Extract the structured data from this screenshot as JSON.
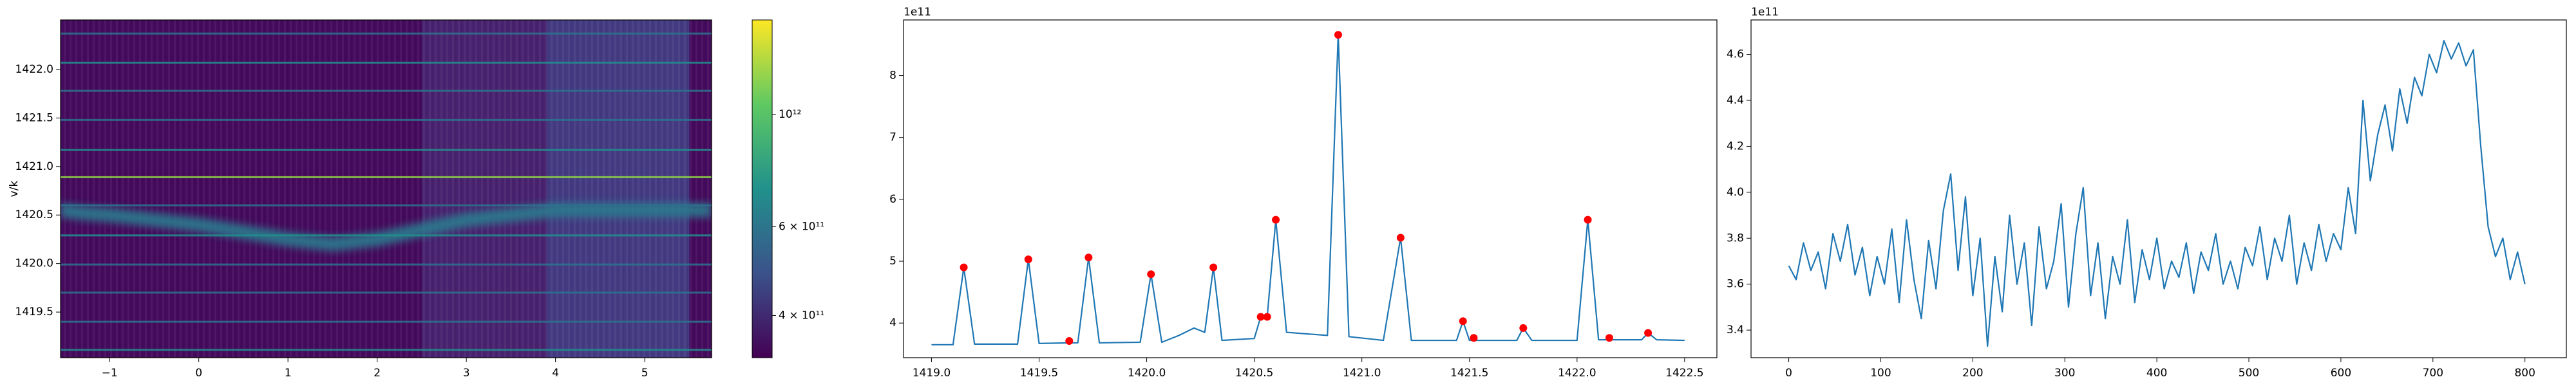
{
  "chart_data": [
    {
      "type": "heatmap",
      "y_label": "v/k",
      "xlim": [
        -1.55,
        5.75
      ],
      "ylim": [
        1419.03,
        1422.51
      ],
      "xticks": [
        {
          "value": -1,
          "label": "−1"
        },
        0,
        1,
        2,
        3,
        4,
        5
      ],
      "yticks": [
        {
          "value": 1419.5,
          "label": "1419.5"
        },
        {
          "value": 1420.0,
          "label": "1420.0"
        },
        {
          "value": 1420.5,
          "label": "1420.5"
        },
        {
          "value": 1421.0,
          "label": "1421.0"
        },
        {
          "value": 1421.5,
          "label": "1421.5"
        },
        {
          "value": 1422.0,
          "label": "1422.0"
        }
      ],
      "background": "#440a5c",
      "regions": [
        {
          "x": [
            2.5,
            3.9
          ],
          "color": "#48226f"
        },
        {
          "x": [
            3.9,
            5.5
          ],
          "color": "#433a82"
        }
      ],
      "lines": [
        1422.37,
        1422.07,
        1421.78,
        1421.48,
        1421.17,
        1420.89,
        1420.6,
        1420.29,
        1419.99,
        1419.7,
        1419.4,
        1419.11
      ],
      "line_colors": [
        "#2c738e",
        "#21908d",
        "#2c738e",
        "#2c738e",
        "#21908d",
        "#8fd744",
        "#2c738e",
        "#21908d",
        "#2c738e",
        "#2c738e",
        "#2c738e",
        "#21908d"
      ],
      "band": {
        "x": [
          -1.55,
          -1.3,
          -1,
          0,
          1,
          1.5,
          2,
          3,
          4,
          5,
          5.75
        ],
        "y": [
          1420.55,
          1420.52,
          1420.5,
          1420.4,
          1420.25,
          1420.2,
          1420.25,
          1420.45,
          1420.55,
          1420.55,
          1420.55
        ],
        "color": "#2a7b8e"
      },
      "colorbar": {
        "lim": [
          330000000000,
          1540000000000
        ],
        "log": true,
        "ticks": [
          {
            "value": 1000000000000,
            "label": "10¹²"
          },
          {
            "value": 600000000000,
            "label": "6 × 10¹¹"
          },
          {
            "value": 400000000000,
            "label": "4 × 10¹¹"
          }
        ]
      }
    },
    {
      "type": "line",
      "offset_text": "1e11",
      "xlim": [
        1418.87,
        1422.65
      ],
      "ylim": [
        3.44,
        8.9
      ],
      "xticks": [
        {
          "value": 1419.0,
          "label": "1419.0"
        },
        1419.5,
        {
          "value": 1420.0,
          "label": "1420.0"
        },
        1420.5,
        {
          "value": 1421.0,
          "label": "1421.0"
        },
        1421.5,
        {
          "value": 1422.0,
          "label": "1422.0"
        },
        1422.5
      ],
      "yticks": [
        4,
        5,
        6,
        7,
        8
      ],
      "x": [
        1419.0,
        1419.1,
        1419.15,
        1419.2,
        1419.4,
        1419.45,
        1419.5,
        1419.64,
        1419.68,
        1419.73,
        1419.78,
        1419.97,
        1420.02,
        1420.07,
        1420.15,
        1420.22,
        1420.27,
        1420.31,
        1420.35,
        1420.5,
        1420.53,
        1420.56,
        1420.6,
        1420.65,
        1420.84,
        1420.89,
        1420.94,
        1421.1,
        1421.18,
        1421.23,
        1421.44,
        1421.47,
        1421.5,
        1421.72,
        1421.75,
        1421.79,
        1422.0,
        1422.05,
        1422.1,
        1422.3,
        1422.33,
        1422.37,
        1422.5
      ],
      "series": [
        {
          "color": "#1f77b4",
          "values": [
            3.65,
            3.65,
            4.9,
            3.66,
            3.66,
            5.03,
            3.67,
            3.68,
            3.68,
            5.06,
            3.68,
            3.69,
            4.79,
            3.69,
            3.8,
            3.92,
            3.85,
            4.9,
            3.72,
            3.75,
            4.1,
            4.1,
            5.67,
            3.85,
            3.8,
            8.66,
            3.78,
            3.72,
            5.38,
            3.72,
            3.72,
            4.03,
            3.72,
            3.72,
            3.92,
            3.72,
            3.72,
            5.67,
            3.73,
            3.73,
            3.84,
            3.73,
            3.72
          ]
        }
      ],
      "markers": {
        "color": "#ff0000",
        "x": [
          1419.15,
          1419.45,
          1419.64,
          1419.73,
          1420.02,
          1420.31,
          1420.53,
          1420.56,
          1420.6,
          1420.89,
          1421.18,
          1421.47,
          1421.52,
          1421.75,
          1422.05,
          1422.15,
          1422.33
        ],
        "y": [
          4.9,
          5.03,
          3.71,
          5.06,
          4.79,
          4.9,
          4.1,
          4.1,
          5.67,
          8.66,
          5.38,
          4.03,
          3.76,
          3.92,
          5.67,
          3.76,
          3.84
        ]
      }
    },
    {
      "type": "line",
      "offset_text": "1e11",
      "xlim": [
        -41,
        845
      ],
      "ylim": [
        3.28,
        4.75
      ],
      "xticks": [
        0,
        100,
        200,
        300,
        400,
        500,
        600,
        700,
        800
      ],
      "yticks": [
        3.4,
        3.6,
        {
          "value": 3.8,
          "label": "3.8"
        },
        {
          "value": 4.0,
          "label": "4.0"
        },
        4.2,
        4.4,
        4.6
      ],
      "x": [
        0,
        8,
        16,
        24,
        32,
        40,
        48,
        56,
        64,
        72,
        80,
        88,
        96,
        104,
        112,
        120,
        128,
        136,
        144,
        152,
        160,
        168,
        176,
        184,
        192,
        200,
        208,
        216,
        224,
        232,
        240,
        248,
        256,
        264,
        272,
        280,
        288,
        296,
        304,
        312,
        320,
        328,
        336,
        344,
        352,
        360,
        368,
        376,
        384,
        392,
        400,
        408,
        416,
        424,
        432,
        440,
        448,
        456,
        464,
        472,
        480,
        488,
        496,
        504,
        512,
        520,
        528,
        536,
        544,
        552,
        560,
        568,
        576,
        584,
        592,
        600,
        608,
        616,
        624,
        632,
        640,
        648,
        656,
        664,
        672,
        680,
        688,
        696,
        704,
        712,
        720,
        728,
        736,
        744,
        752,
        760,
        768,
        776,
        784,
        792,
        800
      ],
      "series": [
        {
          "color": "#1f77b4",
          "values": [
            3.68,
            3.62,
            3.78,
            3.66,
            3.74,
            3.58,
            3.82,
            3.7,
            3.86,
            3.64,
            3.76,
            3.55,
            3.72,
            3.6,
            3.84,
            3.52,
            3.88,
            3.62,
            3.45,
            3.79,
            3.58,
            3.92,
            4.08,
            3.66,
            3.98,
            3.55,
            3.8,
            3.33,
            3.72,
            3.48,
            3.9,
            3.6,
            3.78,
            3.42,
            3.85,
            3.58,
            3.7,
            3.95,
            3.5,
            3.82,
            4.02,
            3.55,
            3.78,
            3.45,
            3.72,
            3.6,
            3.88,
            3.52,
            3.75,
            3.62,
            3.8,
            3.58,
            3.7,
            3.63,
            3.78,
            3.56,
            3.74,
            3.66,
            3.82,
            3.6,
            3.7,
            3.58,
            3.76,
            3.68,
            3.85,
            3.62,
            3.8,
            3.7,
            3.9,
            3.6,
            3.78,
            3.66,
            3.86,
            3.7,
            3.82,
            3.75,
            4.02,
            3.82,
            4.4,
            4.05,
            4.25,
            4.38,
            4.18,
            4.45,
            4.3,
            4.5,
            4.42,
            4.6,
            4.52,
            4.66,
            4.58,
            4.65,
            4.55,
            4.62,
            4.2,
            3.85,
            3.72,
            3.8,
            3.62,
            3.74,
            3.6
          ]
        }
      ]
    }
  ]
}
